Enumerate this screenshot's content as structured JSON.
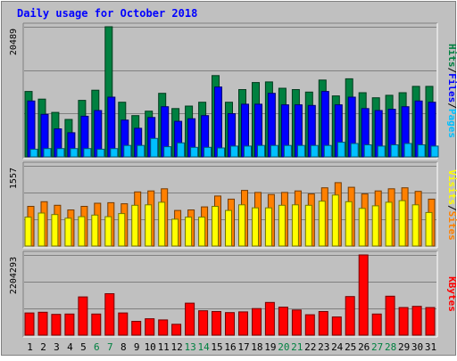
{
  "chart_data": {
    "type": "bar",
    "title": "Daily usage for October 2018",
    "categories": [
      "1",
      "2",
      "3",
      "4",
      "5",
      "6",
      "7",
      "8",
      "9",
      "10",
      "11",
      "12",
      "13",
      "14",
      "15",
      "16",
      "17",
      "18",
      "19",
      "20",
      "21",
      "22",
      "23",
      "24",
      "25",
      "26",
      "27",
      "28",
      "29",
      "30",
      "31"
    ],
    "weekend_days": [
      "6",
      "7",
      "13",
      "14",
      "20",
      "21",
      "27",
      "28"
    ],
    "panels": [
      {
        "id": "hits",
        "ymax_label": "20489",
        "ymax": 20489,
        "grid": true,
        "series": [
          {
            "name": "Hits",
            "color": "#008040",
            "values": [
              10300,
              9100,
              7000,
              5900,
              8900,
              10500,
              20489,
              8600,
              6500,
              7200,
              10000,
              7600,
              8000,
              8600,
              12800,
              8600,
              10600,
              11700,
              11800,
              10800,
              10600,
              10200,
              12100,
              9600,
              12300,
              10100,
              9300,
              9700,
              10100,
              11100,
              11100
            ]
          },
          {
            "name": "Files",
            "color": "#0000ff",
            "values": [
              8800,
              6700,
              4400,
              3800,
              6400,
              7300,
              9400,
              5800,
              4500,
              6200,
              7900,
              5600,
              6000,
              6500,
              11000,
              6800,
              8300,
              8300,
              10000,
              8200,
              8200,
              8100,
              10300,
              8200,
              9400,
              7600,
              7300,
              7500,
              7900,
              8800,
              8600
            ]
          },
          {
            "name": "Pages",
            "color": "#00c0ff",
            "values": [
              1200,
              1300,
              1300,
              1300,
              1300,
              1200,
              1300,
              1800,
              1800,
              2900,
              1600,
              2200,
              1500,
              1500,
              1400,
              1700,
              1700,
              1800,
              1800,
              1800,
              1800,
              1800,
              1800,
              2300,
              2100,
              1900,
              1700,
              1900,
              2100,
              1900,
              1700
            ]
          }
        ],
        "axis_labels": [
          {
            "text": "Hits",
            "color": "#008040"
          },
          {
            "text": "/",
            "color": "#000000"
          },
          {
            "text": "Files",
            "color": "#0000ff"
          },
          {
            "text": "/",
            "color": "#000000"
          },
          {
            "text": "Pages",
            "color": "#00c0ff"
          }
        ]
      },
      {
        "id": "visits",
        "ymax_label": "1557",
        "ymax": 1557,
        "grid": true,
        "series": [
          {
            "name": "Visits",
            "color": "#ff8000",
            "values": [
              770,
              860,
              790,
              700,
              770,
              830,
              840,
              820,
              1050,
              1070,
              1110,
              690,
              700,
              760,
              970,
              910,
              1080,
              1040,
              1000,
              1040,
              1070,
              1010,
              1130,
              1230,
              1140,
              1010,
              1070,
              1110,
              1130,
              1060,
              910
            ]
          },
          {
            "name": "Sites",
            "color": "#ffff00",
            "values": [
              560,
              640,
              610,
              540,
              570,
              600,
              570,
              630,
              790,
              800,
              850,
              520,
              560,
              560,
              770,
              690,
              800,
              740,
              740,
              790,
              800,
              790,
              870,
              990,
              860,
              730,
              780,
              850,
              880,
              800,
              650
            ]
          }
        ],
        "axis_labels": [
          {
            "text": "Visits",
            "color": "#ffff00"
          },
          {
            "text": "/",
            "color": "#000000"
          },
          {
            "text": "Sites",
            "color": "#ff8000"
          }
        ]
      },
      {
        "id": "kbytes",
        "ymax_label": "2204293",
        "ymax": 2204293,
        "grid": true,
        "series": [
          {
            "name": "KBytes",
            "color": "#ff0000",
            "values": [
              610000,
              630000,
              570000,
              580000,
              1050000,
              580000,
              1140000,
              610000,
              380000,
              450000,
              420000,
              300000,
              880000,
              670000,
              650000,
              620000,
              640000,
              730000,
              900000,
              770000,
              690000,
              560000,
              650000,
              500000,
              1060000,
              2204293,
              580000,
              1070000,
              760000,
              790000,
              760000
            ]
          }
        ],
        "axis_labels": [
          {
            "text": "KBytes",
            "color": "#ff0000"
          }
        ]
      }
    ]
  },
  "colors": {
    "background": "#c0c0c0",
    "title": "#0000ff",
    "day_label": "#000000",
    "weekend_label": "#008040",
    "grid": "#808080"
  }
}
